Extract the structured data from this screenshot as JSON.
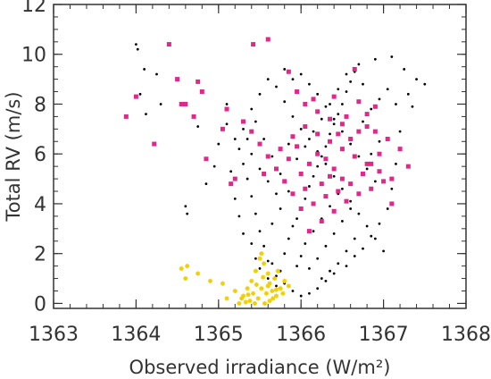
{
  "chart_data": {
    "type": "scatter",
    "title": "",
    "xlabel": "Observed irradiance (W/m²)",
    "ylabel": "Total RV (m/s)",
    "xlim": [
      1363,
      1368
    ],
    "ylim": [
      -0.2,
      12
    ],
    "x_ticks": [
      1363,
      1364,
      1365,
      1366,
      1367,
      1368
    ],
    "y_ticks": [
      0,
      2,
      4,
      6,
      8,
      10,
      12
    ],
    "grid": false,
    "legend": "none",
    "colors": {
      "black_series": "#000000",
      "magenta_series": "#e0288a",
      "yellow_series": "#f0d000",
      "axes": "#333333"
    },
    "series": [
      {
        "marker": "dot",
        "color": "#000000",
        "points": [
          [
            1364.0,
            10.4
          ],
          [
            1364.02,
            10.2
          ],
          [
            1364.1,
            9.4
          ],
          [
            1364.25,
            9.2
          ],
          [
            1364.05,
            8.4
          ],
          [
            1364.12,
            7.6
          ],
          [
            1364.3,
            8.0
          ],
          [
            1364.6,
            3.9
          ],
          [
            1364.62,
            3.6
          ],
          [
            1364.85,
            4.8
          ],
          [
            1364.95,
            5.5
          ],
          [
            1365.0,
            6.4
          ],
          [
            1365.1,
            7.2
          ],
          [
            1365.1,
            8.0
          ],
          [
            1364.75,
            7.1
          ],
          [
            1365.2,
            6.6
          ],
          [
            1365.15,
            5.3
          ],
          [
            1365.2,
            4.2
          ],
          [
            1365.25,
            3.5
          ],
          [
            1365.3,
            2.8
          ],
          [
            1365.4,
            2.4
          ],
          [
            1365.45,
            1.8
          ],
          [
            1365.5,
            1.4
          ],
          [
            1365.6,
            1.0
          ],
          [
            1365.7,
            0.7
          ],
          [
            1365.65,
            1.6
          ],
          [
            1365.75,
            1.3
          ],
          [
            1365.8,
            2.0
          ],
          [
            1365.85,
            2.6
          ],
          [
            1365.9,
            3.1
          ],
          [
            1365.95,
            3.4
          ],
          [
            1366.0,
            3.8
          ],
          [
            1366.05,
            4.2
          ],
          [
            1366.1,
            4.7
          ],
          [
            1366.15,
            5.1
          ],
          [
            1366.2,
            5.5
          ],
          [
            1366.25,
            5.9
          ],
          [
            1366.3,
            6.3
          ],
          [
            1366.35,
            6.8
          ],
          [
            1366.4,
            7.2
          ],
          [
            1366.45,
            7.6
          ],
          [
            1366.5,
            8.0
          ],
          [
            1366.55,
            8.5
          ],
          [
            1366.6,
            8.9
          ],
          [
            1366.65,
            9.3
          ],
          [
            1366.7,
            9.6
          ],
          [
            1366.9,
            9.8
          ],
          [
            1367.1,
            9.9
          ],
          [
            1367.25,
            9.4
          ],
          [
            1367.4,
            9.0
          ],
          [
            1367.5,
            8.8
          ],
          [
            1367.35,
            7.9
          ],
          [
            1367.2,
            6.9
          ],
          [
            1367.15,
            5.6
          ],
          [
            1367.1,
            4.6
          ],
          [
            1367.05,
            3.8
          ],
          [
            1366.95,
            3.2
          ],
          [
            1366.85,
            2.7
          ],
          [
            1366.75,
            2.2
          ],
          [
            1366.65,
            1.9
          ],
          [
            1366.55,
            1.5
          ],
          [
            1366.4,
            1.2
          ],
          [
            1366.3,
            0.9
          ],
          [
            1366.2,
            0.6
          ],
          [
            1366.1,
            0.4
          ],
          [
            1366.0,
            0.3
          ],
          [
            1365.9,
            0.5
          ],
          [
            1365.8,
            0.8
          ],
          [
            1365.7,
            1.1
          ],
          [
            1365.6,
            1.7
          ],
          [
            1365.55,
            2.3
          ],
          [
            1365.5,
            2.9
          ],
          [
            1365.45,
            3.6
          ],
          [
            1365.4,
            4.3
          ],
          [
            1365.35,
            5.0
          ],
          [
            1365.3,
            5.6
          ],
          [
            1365.25,
            6.2
          ],
          [
            1365.3,
            7.0
          ],
          [
            1365.4,
            7.8
          ],
          [
            1365.5,
            8.4
          ],
          [
            1365.6,
            9.0
          ],
          [
            1365.7,
            8.7
          ],
          [
            1365.8,
            8.1
          ],
          [
            1365.9,
            7.5
          ],
          [
            1366.0,
            7.0
          ],
          [
            1366.1,
            6.6
          ],
          [
            1366.2,
            6.1
          ],
          [
            1366.3,
            5.6
          ],
          [
            1366.4,
            5.1
          ],
          [
            1366.5,
            4.6
          ],
          [
            1366.6,
            4.1
          ],
          [
            1366.7,
            3.6
          ],
          [
            1366.8,
            3.1
          ],
          [
            1366.9,
            2.6
          ],
          [
            1367.0,
            2.1
          ],
          [
            1366.9,
            4.9
          ],
          [
            1366.8,
            5.4
          ],
          [
            1366.7,
            5.9
          ],
          [
            1366.6,
            6.4
          ],
          [
            1366.5,
            6.9
          ],
          [
            1366.4,
            7.4
          ],
          [
            1366.3,
            7.9
          ],
          [
            1366.2,
            8.4
          ],
          [
            1366.1,
            8.8
          ],
          [
            1366.0,
            9.2
          ],
          [
            1365.9,
            9.0
          ],
          [
            1365.8,
            9.4
          ],
          [
            1366.75,
            7.3
          ],
          [
            1366.85,
            7.8
          ],
          [
            1366.95,
            8.2
          ],
          [
            1367.05,
            8.6
          ],
          [
            1366.95,
            6.5
          ],
          [
            1366.85,
            6.0
          ],
          [
            1366.05,
            2.4
          ],
          [
            1366.15,
            2.9
          ],
          [
            1366.25,
            3.4
          ],
          [
            1366.35,
            3.9
          ],
          [
            1366.45,
            4.4
          ],
          [
            1365.95,
            1.5
          ],
          [
            1366.0,
            1.9
          ],
          [
            1366.1,
            1.4
          ],
          [
            1366.2,
            1.8
          ],
          [
            1366.3,
            2.3
          ],
          [
            1366.4,
            2.8
          ],
          [
            1366.5,
            3.3
          ],
          [
            1366.6,
            3.8
          ],
          [
            1365.85,
            4.5
          ],
          [
            1365.75,
            5.2
          ],
          [
            1365.65,
            5.9
          ],
          [
            1365.55,
            6.6
          ],
          [
            1365.45,
            7.3
          ],
          [
            1365.95,
            5.8
          ],
          [
            1366.05,
            6.3
          ],
          [
            1366.15,
            6.9
          ],
          [
            1366.25,
            7.4
          ],
          [
            1366.35,
            8.0
          ],
          [
            1366.45,
            8.6
          ],
          [
            1365.65,
            3.2
          ],
          [
            1365.75,
            3.8
          ],
          [
            1365.85,
            6.4
          ],
          [
            1365.7,
            4.4
          ],
          [
            1365.6,
            4.9
          ],
          [
            1365.5,
            5.4
          ],
          [
            1365.4,
            6.0
          ],
          [
            1365.35,
            6.6
          ],
          [
            1366.65,
            2.6
          ],
          [
            1366.55,
            2.1
          ],
          [
            1366.45,
            1.6
          ],
          [
            1366.35,
            1.3
          ],
          [
            1366.25,
            1.0
          ],
          [
            1367.3,
            8.4
          ],
          [
            1367.15,
            8.0
          ],
          [
            1366.75,
            8.8
          ],
          [
            1366.55,
            9.2
          ]
        ]
      },
      {
        "marker": "square",
        "color": "#e0288a",
        "points": [
          [
            1363.88,
            7.5
          ],
          [
            1364.0,
            8.3
          ],
          [
            1364.22,
            6.4
          ],
          [
            1364.4,
            10.4
          ],
          [
            1364.5,
            9.0
          ],
          [
            1364.55,
            8.0
          ],
          [
            1364.6,
            8.0
          ],
          [
            1364.7,
            7.5
          ],
          [
            1364.75,
            8.9
          ],
          [
            1364.8,
            8.5
          ],
          [
            1364.85,
            5.8
          ],
          [
            1365.05,
            7.0
          ],
          [
            1365.1,
            7.8
          ],
          [
            1365.42,
            10.4
          ],
          [
            1365.6,
            10.6
          ],
          [
            1365.85,
            9.3
          ],
          [
            1365.95,
            8.5
          ],
          [
            1366.05,
            8.0
          ],
          [
            1366.2,
            7.7
          ],
          [
            1366.35,
            7.4
          ],
          [
            1366.5,
            7.2
          ],
          [
            1366.65,
            9.4
          ],
          [
            1366.8,
            7.1
          ],
          [
            1366.9,
            6.9
          ],
          [
            1367.05,
            6.6
          ],
          [
            1366.95,
            6.0
          ],
          [
            1366.85,
            5.6
          ],
          [
            1366.75,
            5.2
          ],
          [
            1366.6,
            4.8
          ],
          [
            1366.45,
            4.5
          ],
          [
            1366.3,
            4.3
          ],
          [
            1366.15,
            4.0
          ],
          [
            1366.0,
            3.8
          ],
          [
            1365.9,
            4.4
          ],
          [
            1365.8,
            4.9
          ],
          [
            1365.7,
            5.4
          ],
          [
            1365.6,
            5.9
          ],
          [
            1365.5,
            6.4
          ],
          [
            1365.4,
            6.9
          ],
          [
            1365.3,
            7.3
          ],
          [
            1365.2,
            5.0
          ],
          [
            1365.15,
            4.8
          ],
          [
            1365.55,
            5.2
          ],
          [
            1365.75,
            6.2
          ],
          [
            1365.9,
            6.7
          ],
          [
            1366.05,
            7.1
          ],
          [
            1366.2,
            6.8
          ],
          [
            1366.35,
            6.5
          ],
          [
            1366.5,
            6.2
          ],
          [
            1366.65,
            5.9
          ],
          [
            1366.8,
            5.6
          ],
          [
            1366.95,
            5.3
          ],
          [
            1367.1,
            5.0
          ],
          [
            1367.1,
            4.0
          ],
          [
            1367.2,
            6.2
          ],
          [
            1367.3,
            5.5
          ],
          [
            1366.1,
            2.9
          ],
          [
            1366.25,
            3.3
          ],
          [
            1366.4,
            3.7
          ],
          [
            1366.55,
            4.1
          ],
          [
            1366.7,
            4.4
          ],
          [
            1366.85,
            4.6
          ],
          [
            1367.0,
            4.9
          ],
          [
            1366.0,
            5.2
          ],
          [
            1366.1,
            5.6
          ],
          [
            1366.2,
            6.0
          ],
          [
            1366.3,
            5.8
          ],
          [
            1366.4,
            5.4
          ],
          [
            1366.5,
            5.0
          ],
          [
            1366.6,
            6.6
          ],
          [
            1366.7,
            6.9
          ],
          [
            1366.8,
            7.6
          ],
          [
            1366.9,
            7.9
          ],
          [
            1366.7,
            8.1
          ],
          [
            1366.4,
            8.3
          ],
          [
            1366.15,
            8.2
          ],
          [
            1365.95,
            6.3
          ],
          [
            1365.85,
            5.8
          ],
          [
            1366.45,
            6.8
          ],
          [
            1366.55,
            7.5
          ],
          [
            1366.25,
            4.8
          ],
          [
            1366.35,
            5.1
          ],
          [
            1366.05,
            4.6
          ]
        ]
      },
      {
        "marker": "star",
        "color": "#f0d000",
        "points": [
          [
            1364.55,
            1.4
          ],
          [
            1364.62,
            1.5
          ],
          [
            1364.6,
            1.0
          ],
          [
            1364.75,
            1.2
          ],
          [
            1364.9,
            0.9
          ],
          [
            1365.05,
            0.8
          ],
          [
            1365.1,
            0.2
          ],
          [
            1365.2,
            0.5
          ],
          [
            1365.25,
            0.0
          ],
          [
            1365.3,
            0.3
          ],
          [
            1365.35,
            0.6
          ],
          [
            1365.4,
            0.9
          ],
          [
            1365.45,
            1.3
          ],
          [
            1365.5,
            1.8
          ],
          [
            1365.52,
            2.0
          ],
          [
            1365.55,
            1.6
          ],
          [
            1365.6,
            1.2
          ],
          [
            1365.62,
            0.8
          ],
          [
            1365.65,
            0.5
          ],
          [
            1365.7,
            0.3
          ],
          [
            1365.75,
            0.6
          ],
          [
            1365.8,
            0.9
          ],
          [
            1365.85,
            0.7
          ],
          [
            1365.68,
            1.0
          ],
          [
            1365.58,
            0.4
          ],
          [
            1365.48,
            0.2
          ],
          [
            1365.38,
            0.1
          ],
          [
            1365.28,
            0.2
          ],
          [
            1365.42,
            0.4
          ],
          [
            1365.52,
            0.6
          ],
          [
            1365.62,
            0.1
          ],
          [
            1365.72,
            1.3
          ],
          [
            1365.78,
            0.4
          ],
          [
            1365.33,
            0.05
          ],
          [
            1365.44,
            0.0
          ],
          [
            1365.56,
            0.0
          ],
          [
            1365.66,
            0.2
          ],
          [
            1365.46,
            0.75
          ],
          [
            1365.54,
            1.05
          ],
          [
            1365.36,
            0.35
          ],
          [
            1365.6,
            0.7
          ],
          [
            1365.7,
            0.55
          ]
        ]
      }
    ]
  }
}
